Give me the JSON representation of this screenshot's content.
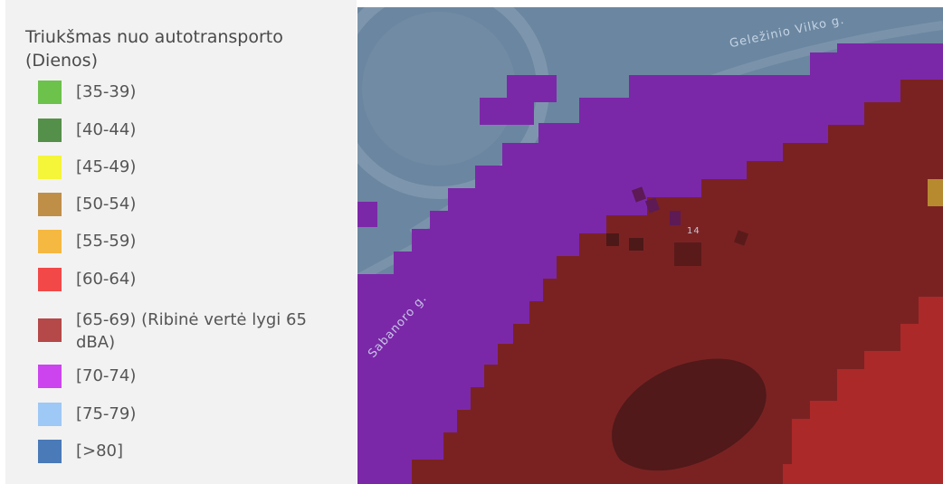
{
  "legend": {
    "title": "Triukšmas nuo autotransporto (Dienos)",
    "items": [
      {
        "label": "[35-39)",
        "color": "#6cc24a"
      },
      {
        "label": "[40-44)",
        "color": "#55904a"
      },
      {
        "label": "[45-49)",
        "color": "#f5f53a"
      },
      {
        "label": "[50-54)",
        "color": "#bf8f48"
      },
      {
        "label": "[55-59)",
        "color": "#f5b840"
      },
      {
        "label": "[60-64)",
        "color": "#f24848"
      },
      {
        "label": "[65-69) (Ribinė vertė lygi 65 dBA)",
        "color": "#b54848"
      },
      {
        "label": "[70-74)",
        "color": "#cc44ee"
      },
      {
        "label": "[75-79)",
        "color": "#9ec8f5"
      },
      {
        "label": "[>80]",
        "color": "#4a7ab8"
      }
    ]
  },
  "map": {
    "street_labels": [
      "Geležinio Vilko g.",
      "Sabanoro g.",
      "14"
    ]
  }
}
